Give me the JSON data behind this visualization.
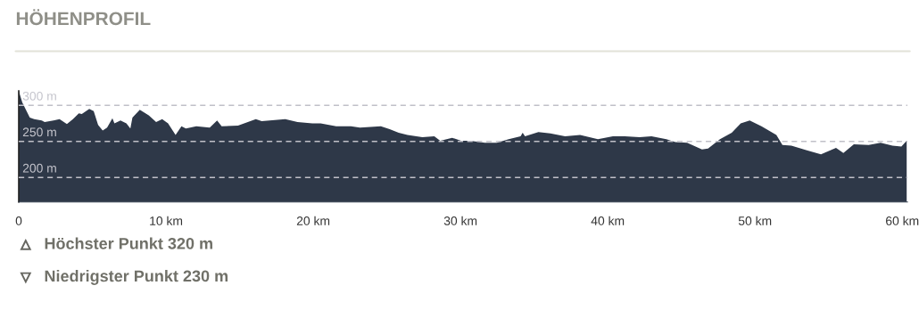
{
  "chart_data": {
    "type": "area",
    "title": "HÖHENPROFIL",
    "x": [
      0,
      0.24,
      0.75,
      1.05,
      1.56,
      1.76,
      2.36,
      2.77,
      3.27,
      3.68,
      4.08,
      4.28,
      4.79,
      5.09,
      5.39,
      5.7,
      6.0,
      6.36,
      6.5,
      6.91,
      7.31,
      7.58,
      7.72,
      8.22,
      8.83,
      9.33,
      9.74,
      10.14,
      10.65,
      11.05,
      11.35,
      12.06,
      12.97,
      13.47,
      13.78,
      14.89,
      16.1,
      16.5,
      18.1,
      18.93,
      19.94,
      20.5,
      21.56,
      22.56,
      23.17,
      24.59,
      25.19,
      25.8,
      26.4,
      27.41,
      28.22,
      28.62,
      29.43,
      30.04,
      30.65,
      31.65,
      32.47,
      33.27,
      34.08,
      34.22,
      34.38,
      35.29,
      36.1,
      37.1,
      38.12,
      39.33,
      40.35,
      41.15,
      42.16,
      42.97,
      43.98,
      44.59,
      45.39,
      46.4,
      46.81,
      47.62,
      48.42,
      49.03,
      49.64,
      50.44,
      51.45,
      51.86,
      52.47,
      53.47,
      54.48,
      55.5,
      56.0,
      56.71,
      57.72,
      58.53,
      59.33,
      59.94,
      60.3
    ],
    "series": [
      {
        "color": "#2e3848",
        "values": [
          320,
          304,
          283,
          281,
          279,
          277,
          279,
          281,
          274,
          281,
          289,
          288,
          295,
          292,
          273,
          265,
          269,
          282,
          275,
          279,
          275,
          268,
          283,
          294,
          286,
          277,
          281,
          275,
          259,
          271,
          268,
          271,
          269,
          279,
          271,
          272,
          281,
          278,
          281,
          277,
          275,
          275,
          271,
          271,
          269,
          271,
          267,
          262,
          259,
          256,
          257,
          251,
          255,
          251,
          251,
          248,
          248,
          253,
          257,
          262,
          257,
          263,
          261,
          257,
          259,
          253,
          257,
          257,
          256,
          257,
          253,
          249,
          248,
          239,
          240,
          253,
          262,
          275,
          279,
          271,
          259,
          245,
          244,
          238,
          232,
          241,
          234,
          246,
          245,
          248,
          244,
          243,
          251
        ]
      }
    ],
    "xlim": [
      0,
      60.35
    ],
    "ylim": [
      166,
      320
    ],
    "xticks": [
      0,
      {
        "value": 10,
        "label": "10 km"
      },
      {
        "value": 20,
        "label": "20 km"
      },
      {
        "value": 30,
        "label": "30 km"
      },
      {
        "value": 40,
        "label": "40 km"
      },
      {
        "value": 50,
        "label": "50 km"
      },
      {
        "value": 60,
        "label": "60 km"
      }
    ],
    "yticks": [
      {
        "value": 200,
        "label": "200 m"
      },
      {
        "value": 250,
        "label": "250 m"
      },
      {
        "value": 300,
        "label": "300 m"
      }
    ],
    "grid": "y",
    "line_style": "dashed",
    "annotations": [
      "Höchster Punkt 320 m",
      "Niedrigster Punkt 230 m"
    ]
  }
}
